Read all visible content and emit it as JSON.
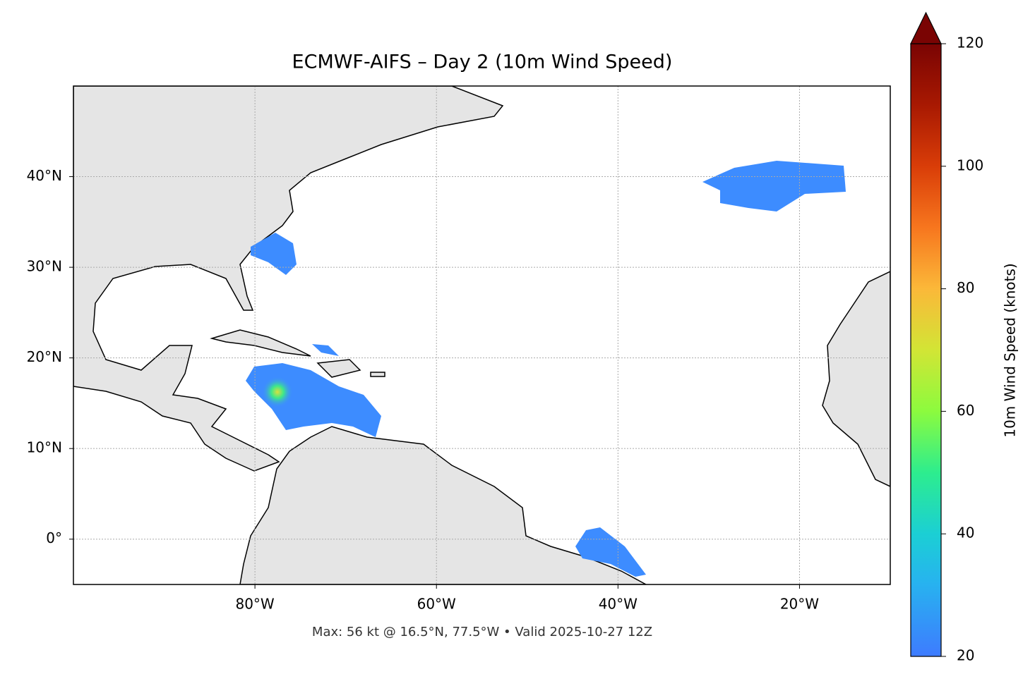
{
  "chart_data": {
    "type": "map",
    "title": "ECMWF-AIFS – Day 2 (10m Wind Speed)",
    "caption": "Max: 56 kt @ 16.5°N, 77.5°W • Valid 2025-10-27 12Z",
    "xlim": [
      -100,
      -10
    ],
    "ylim": [
      -5,
      50
    ],
    "xticks": [
      {
        "value": -80,
        "label": "80°W"
      },
      {
        "value": -60,
        "label": "60°W"
      },
      {
        "value": -40,
        "label": "40°W"
      },
      {
        "value": -20,
        "label": "20°W"
      }
    ],
    "yticks": [
      {
        "value": 0,
        "label": "0°"
      },
      {
        "value": 10,
        "label": "10°N"
      },
      {
        "value": 20,
        "label": "20°N"
      },
      {
        "value": 30,
        "label": "30°N"
      },
      {
        "value": 40,
        "label": "40°N"
      }
    ],
    "grid": true,
    "colorbar": {
      "label": "10m Wind Speed (knots)",
      "lim": [
        20,
        120
      ],
      "ticks": [
        20,
        40,
        60,
        80,
        100,
        120
      ]
    }
  }
}
